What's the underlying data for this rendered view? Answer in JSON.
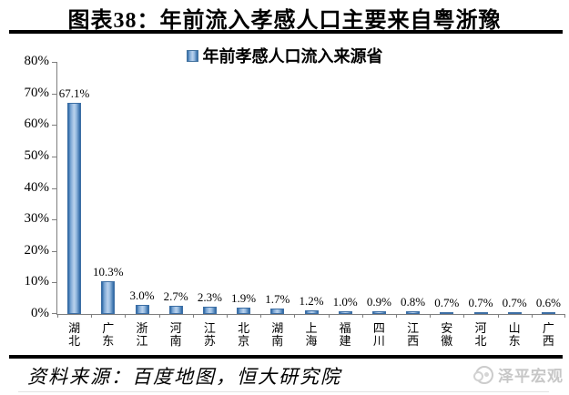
{
  "header": {
    "title": "图表38：年前流入孝感人口主要来自粤浙豫"
  },
  "chart_data": {
    "type": "bar",
    "legend": "年前孝感人口流入来源省",
    "legend_position": "top-center",
    "categories": [
      "湖北",
      "广东",
      "浙江",
      "河南",
      "江苏",
      "北京",
      "湖南",
      "上海",
      "福建",
      "四川",
      "江西",
      "安徽",
      "河北",
      "山东",
      "广西"
    ],
    "values": [
      67.1,
      10.3,
      3.0,
      2.7,
      2.3,
      1.9,
      1.7,
      1.2,
      1.0,
      0.9,
      0.8,
      0.7,
      0.7,
      0.7,
      0.6
    ],
    "data_labels": [
      "67.1%",
      "10.3%",
      "3.0%",
      "2.7%",
      "2.3%",
      "1.9%",
      "1.7%",
      "1.2%",
      "1.0%",
      "0.9%",
      "0.8%",
      "0.7%",
      "0.7%",
      "0.7%",
      "0.6%"
    ],
    "xlabel": "",
    "ylabel": "",
    "ylim": [
      0,
      80
    ],
    "ytick_step": 10,
    "ytick_labels": [
      "0%",
      "10%",
      "20%",
      "30%",
      "40%",
      "50%",
      "60%",
      "70%",
      "80%"
    ],
    "grid": false,
    "bar_color_edge": "#2b66a4",
    "bar_color_center": "#b9d1ec"
  },
  "footer": {
    "source": "资料来源：百度地图，恒大研究院",
    "watermark": "泽平宏观"
  }
}
